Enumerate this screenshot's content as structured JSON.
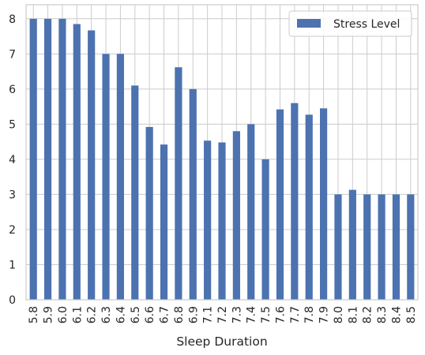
{
  "chart_data": {
    "type": "bar",
    "categories": [
      "5.8",
      "5.9",
      "6.0",
      "6.1",
      "6.2",
      "6.3",
      "6.4",
      "6.5",
      "6.6",
      "6.7",
      "6.8",
      "6.9",
      "7.1",
      "7.2",
      "7.3",
      "7.4",
      "7.5",
      "7.6",
      "7.7",
      "7.8",
      "7.9",
      "8.0",
      "8.1",
      "8.2",
      "8.3",
      "8.4",
      "8.5"
    ],
    "series": [
      {
        "name": "Stress Level",
        "values": [
          8.0,
          8.0,
          8.0,
          7.85,
          7.67,
          7.0,
          7.0,
          6.1,
          4.92,
          4.42,
          6.62,
          6.0,
          4.53,
          4.48,
          4.8,
          5.0,
          4.0,
          5.42,
          5.6,
          5.27,
          5.45,
          3.0,
          3.13,
          3.0,
          3.0,
          3.0,
          3.0
        ]
      }
    ],
    "xlabel": "Sleep Duration",
    "ylabel": "",
    "ylim": [
      0,
      8.4
    ],
    "yticks": [
      "0",
      "1",
      "2",
      "3",
      "4",
      "5",
      "6",
      "7",
      "8"
    ],
    "grid": true,
    "legend_position": "top-right",
    "colors": {
      "bar": "#4c72b0",
      "grid": "#cccccc",
      "frame": "#cccccc"
    }
  }
}
